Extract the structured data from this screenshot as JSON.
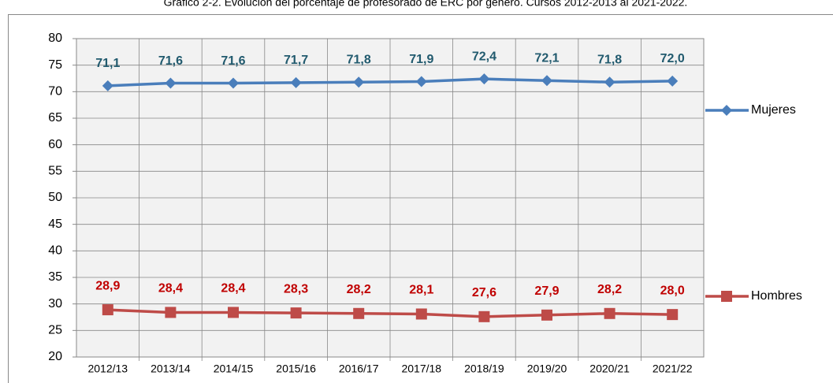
{
  "chart_data": {
    "type": "line",
    "title": "Gráfico 2-2. Evolución del porcentaje de profesorado de ERC por género. Cursos 2012-2013 al 2021-2022.",
    "categories": [
      "2012/13",
      "2013/14",
      "2014/15",
      "2015/16",
      "2016/17",
      "2017/18",
      "2018/19",
      "2019/20",
      "2020/21",
      "2021/22"
    ],
    "series": [
      {
        "name": "Mujeres",
        "color": "#4a7ebb",
        "label_color": "#215a6e",
        "marker": "diamond",
        "values": [
          71.1,
          71.6,
          71.6,
          71.7,
          71.8,
          71.9,
          72.4,
          72.1,
          71.8,
          72.0
        ],
        "value_labels": [
          "71,1",
          "71,6",
          "71,6",
          "71,7",
          "71,8",
          "71,9",
          "72,4",
          "72,1",
          "71,8",
          "72,0"
        ]
      },
      {
        "name": "Hombres",
        "color": "#be4b48",
        "label_color": "#c00000",
        "marker": "square",
        "values": [
          28.9,
          28.4,
          28.4,
          28.3,
          28.2,
          28.1,
          27.6,
          27.9,
          28.2,
          28.0
        ],
        "value_labels": [
          "28,9",
          "28,4",
          "28,4",
          "28,3",
          "28,2",
          "28,1",
          "27,6",
          "27,9",
          "28,2",
          "28,0"
        ]
      }
    ],
    "ylim": [
      20,
      80
    ],
    "yticks": [
      20,
      25,
      30,
      35,
      40,
      45,
      50,
      55,
      60,
      65,
      70,
      75,
      80
    ],
    "grid": true
  }
}
